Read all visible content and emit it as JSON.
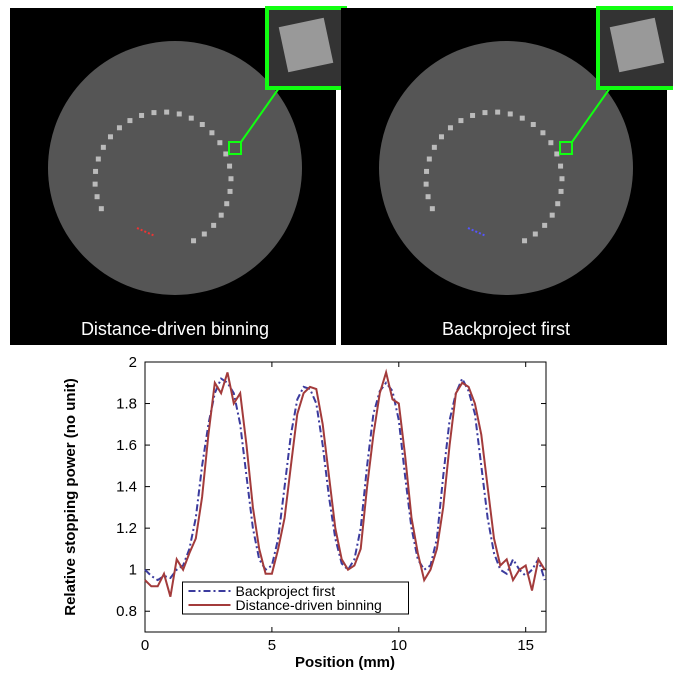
{
  "panels": [
    {
      "caption": "Distance-driven binning"
    },
    {
      "caption": "Backproject first"
    }
  ],
  "chart_data": {
    "type": "line",
    "xlabel": "Position (mm)",
    "ylabel": "Relative stopping power (no unit)",
    "x": [
      0,
      0.25,
      0.5,
      0.75,
      1,
      1.25,
      1.5,
      1.75,
      2,
      2.25,
      2.5,
      2.75,
      3,
      3.25,
      3.5,
      3.75,
      4,
      4.25,
      4.5,
      4.75,
      5,
      5.25,
      5.5,
      5.75,
      6,
      6.25,
      6.5,
      6.75,
      7,
      7.25,
      7.5,
      7.75,
      8,
      8.25,
      8.5,
      8.75,
      9,
      9.25,
      9.5,
      9.75,
      10,
      10.25,
      10.5,
      10.75,
      11,
      11.25,
      11.5,
      11.75,
      12,
      12.25,
      12.5,
      12.75,
      13,
      13.25,
      13.5,
      13.75,
      14,
      14.25,
      14.5,
      14.75,
      15,
      15.25,
      15.5,
      15.75
    ],
    "series": [
      {
        "name": "Backproject first",
        "color": "#3b3b9e",
        "dash": "dashdot",
        "values": [
          1.0,
          0.97,
          0.95,
          0.97,
          0.96,
          1.0,
          1.02,
          1.1,
          1.25,
          1.5,
          1.7,
          1.85,
          1.92,
          1.9,
          1.85,
          1.7,
          1.45,
          1.2,
          1.05,
          1.0,
          1.02,
          1.15,
          1.4,
          1.65,
          1.82,
          1.88,
          1.87,
          1.8,
          1.6,
          1.35,
          1.15,
          1.03,
          1.0,
          1.05,
          1.2,
          1.5,
          1.75,
          1.86,
          1.9,
          1.86,
          1.72,
          1.45,
          1.2,
          1.05,
          1.0,
          1.02,
          1.15,
          1.45,
          1.72,
          1.85,
          1.92,
          1.86,
          1.75,
          1.5,
          1.25,
          1.08,
          1.0,
          0.98,
          1.05,
          1.0,
          0.97,
          1.0,
          1.05,
          0.95
        ]
      },
      {
        "name": "Distance-driven binning",
        "color": "#a33b3b",
        "dash": "solid",
        "values": [
          0.95,
          0.92,
          0.92,
          0.98,
          0.87,
          1.05,
          1.0,
          1.08,
          1.15,
          1.35,
          1.65,
          1.9,
          1.85,
          1.95,
          1.8,
          1.85,
          1.6,
          1.3,
          1.1,
          0.98,
          0.98,
          1.1,
          1.25,
          1.5,
          1.75,
          1.85,
          1.88,
          1.87,
          1.7,
          1.45,
          1.2,
          1.05,
          1.0,
          1.02,
          1.1,
          1.4,
          1.65,
          1.85,
          1.95,
          1.82,
          1.8,
          1.55,
          1.25,
          1.08,
          0.95,
          1.0,
          1.1,
          1.3,
          1.6,
          1.85,
          1.9,
          1.88,
          1.8,
          1.65,
          1.4,
          1.15,
          1.02,
          1.05,
          0.95,
          1.0,
          1.02,
          0.9,
          1.05,
          1.0
        ]
      }
    ],
    "xlim": [
      0,
      15.8
    ],
    "ylim": [
      0.7,
      2
    ],
    "xticks": [
      0,
      5,
      10,
      15
    ],
    "yticks": [
      0.8,
      1,
      1.2,
      1.4,
      1.6,
      1.8,
      2
    ],
    "legend": "lower center"
  }
}
